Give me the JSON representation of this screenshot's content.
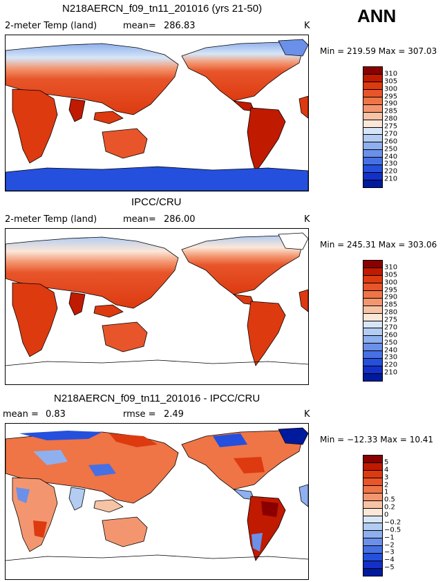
{
  "season": "ANN",
  "units": "K",
  "panels": [
    {
      "title": "N218AERCN_f09_tn11_201016 (yrs 21-50)",
      "variable": "2-meter Temp (land)",
      "stat1_label": "mean=",
      "stat1_value": "286.83",
      "units": "K",
      "minmax": "Min = 219.59  Max = 307.03",
      "colorbar": {
        "labels": [
          "310",
          "305",
          "300",
          "295",
          "290",
          "285",
          "280",
          "275",
          "270",
          "260",
          "250",
          "240",
          "230",
          "220",
          "210"
        ],
        "colors": [
          "#8a0000",
          "#c01a00",
          "#dd3a10",
          "#e8552a",
          "#ef7446",
          "#f39670",
          "#f7c3a5",
          "#fbe7d8",
          "#d7e6f7",
          "#b3ccf2",
          "#8fb0ee",
          "#6b90ea",
          "#4670e4",
          "#2450dd",
          "#1430c8",
          "#001a9e"
        ]
      }
    },
    {
      "title": "IPCC/CRU",
      "variable": "2-meter Temp (land)",
      "stat1_label": "mean=",
      "stat1_value": "286.00",
      "units": "K",
      "minmax": "Min = 245.31  Max = 303.06",
      "colorbar": {
        "labels": [
          "310",
          "305",
          "300",
          "295",
          "290",
          "285",
          "280",
          "275",
          "270",
          "260",
          "250",
          "240",
          "230",
          "220",
          "210"
        ],
        "colors": [
          "#8a0000",
          "#c01a00",
          "#dd3a10",
          "#e8552a",
          "#ef7446",
          "#f39670",
          "#f7c3a5",
          "#fbe7d8",
          "#d7e6f7",
          "#b3ccf2",
          "#8fb0ee",
          "#6b90ea",
          "#4670e4",
          "#2450dd",
          "#1430c8",
          "#001a9e"
        ]
      }
    },
    {
      "title": "N218AERCN_f09_tn11_201016 - IPCC/CRU",
      "variable": "mean =",
      "stat1_label": "",
      "stat1_value": "0.83",
      "rmse_label": "rmse =",
      "rmse_value": "2.49",
      "units": "K",
      "minmax": "Min = −12.33  Max =  10.41",
      "colorbar": {
        "labels": [
          "5",
          "4",
          "3",
          "2",
          "1",
          "0.5",
          "0.2",
          "0",
          "−0.2",
          "−0.5",
          "−1",
          "−2",
          "−3",
          "−4",
          "−5"
        ],
        "colors": [
          "#8a0000",
          "#c01a00",
          "#dd3a10",
          "#e8552a",
          "#ef7446",
          "#f39670",
          "#f7c3a5",
          "#fbe7d8",
          "#d7e6f7",
          "#b3ccf2",
          "#8fb0ee",
          "#6b90ea",
          "#4670e4",
          "#2450dd",
          "#1430c8",
          "#001a9e"
        ]
      }
    }
  ]
}
